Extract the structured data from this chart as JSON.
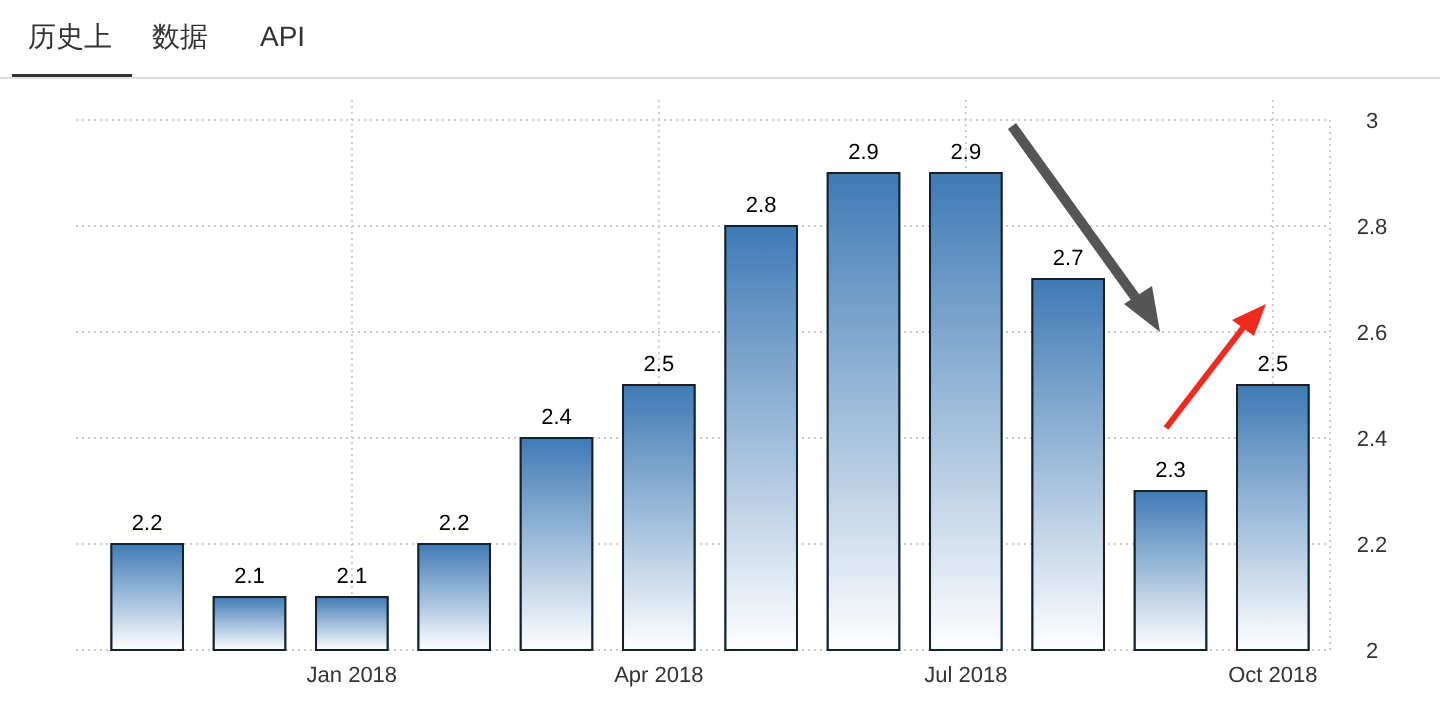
{
  "chart_data": {
    "type": "bar",
    "categories": [
      null,
      null,
      "Jan 2018",
      null,
      null,
      "Apr 2018",
      null,
      null,
      "Jul 2018",
      null,
      null,
      "Oct 2018"
    ],
    "values": [
      2.2,
      2.1,
      2.1,
      2.2,
      2.4,
      2.5,
      2.8,
      2.9,
      2.9,
      2.7,
      2.3,
      2.5
    ],
    "color": "#3f7ab5",
    "ylim": [
      2,
      3
    ],
    "yticks": [
      2,
      2.2,
      2.4,
      2.6,
      2.8,
      3
    ],
    "grid": true,
    "data_labels": true,
    "annotations": [
      "历史上",
      "数据",
      "API"
    ]
  }
}
